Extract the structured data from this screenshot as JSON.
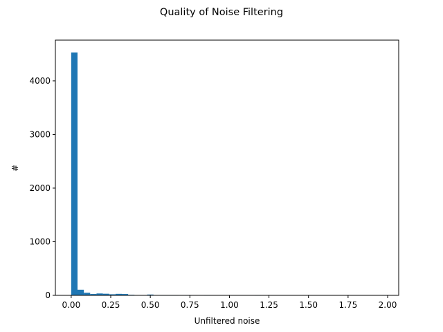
{
  "chart_data": {
    "type": "bar",
    "title": "Quality of Noise Filtering",
    "xlabel": "Unfiltered noise",
    "ylabel": "#",
    "xlim": [
      -0.1,
      2.07
    ],
    "ylim": [
      0,
      4760
    ],
    "xticks": [
      0.0,
      0.25,
      0.5,
      0.75,
      1.0,
      1.25,
      1.5,
      1.75,
      2.0
    ],
    "xtick_labels": [
      "0.00",
      "0.25",
      "0.50",
      "0.75",
      "1.00",
      "1.25",
      "1.50",
      "1.75",
      "2.00"
    ],
    "yticks": [
      0,
      1000,
      2000,
      3000,
      4000
    ],
    "ytick_labels": [
      "0",
      "1000",
      "2000",
      "3000",
      "4000"
    ],
    "bin_width": 0.04,
    "bin_start": 0.0,
    "values": [
      4530,
      105,
      48,
      25,
      35,
      30,
      20,
      28,
      25,
      10,
      5,
      3,
      15,
      2,
      1,
      1,
      1,
      0,
      1,
      0,
      0,
      1,
      0,
      0,
      0,
      0,
      0,
      0,
      0,
      1,
      0,
      0,
      0,
      0,
      0,
      0,
      0,
      0,
      0,
      0,
      0,
      0,
      0,
      0,
      0,
      0,
      0,
      0,
      0,
      1
    ],
    "bar_color": "#1f77b4",
    "grid": false,
    "legend": "none"
  }
}
